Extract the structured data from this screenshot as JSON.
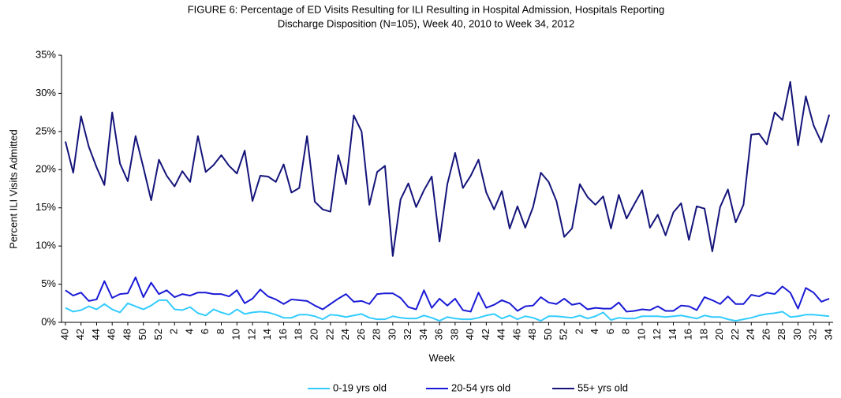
{
  "chart_data": {
    "type": "line",
    "title": [
      "FIGURE 6: Percentage of ED Visits Resulting for ILI Resulting in Hospital Admission, Hospitals Reporting",
      "Discharge Disposition (N=105), Week 40, 2010 to Week 34, 2012"
    ],
    "x_label": "Week",
    "y_label": "Percent ILI Visits Admitted",
    "categories": [
      "40",
      null,
      "42",
      null,
      "44",
      null,
      "46",
      null,
      "48",
      null,
      "50",
      null,
      "52",
      null,
      "2",
      null,
      "4",
      null,
      "6",
      null,
      "8",
      null,
      "10",
      null,
      "12",
      null,
      "14",
      null,
      "16",
      null,
      "18",
      null,
      "20",
      null,
      "22",
      null,
      "24",
      null,
      "26",
      null,
      "28",
      null,
      "30",
      null,
      "32",
      null,
      "34",
      null,
      "36",
      null,
      "38",
      null,
      "40",
      null,
      "42",
      null,
      "44",
      null,
      "46",
      null,
      "48",
      null,
      "50",
      null,
      "52",
      null,
      "2",
      null,
      "4",
      null,
      "6",
      null,
      "8",
      null,
      "10",
      null,
      "12",
      null,
      "14",
      null,
      "16",
      null,
      "18",
      null,
      "20",
      null,
      "22",
      null,
      "24",
      null,
      "26",
      null,
      "28",
      null,
      "30",
      null,
      "32",
      null,
      "34"
    ],
    "ylim": [
      0,
      35
    ],
    "yticks": [
      {
        "value": 0,
        "label": "0%"
      },
      {
        "value": 5,
        "label": "5%"
      },
      {
        "value": 10,
        "label": "10%"
      },
      {
        "value": 15,
        "label": "15%"
      },
      {
        "value": 20,
        "label": "20%"
      },
      {
        "value": 25,
        "label": "25%"
      },
      {
        "value": 30,
        "label": "30%"
      },
      {
        "value": 35,
        "label": "35%"
      }
    ],
    "grid": false,
    "legend": "bottom",
    "series": [
      {
        "name": "0-19 yrs old",
        "color": "#33ccff",
        "values": [
          1.9,
          1.4,
          1.6,
          2.1,
          1.7,
          2.4,
          1.7,
          1.3,
          2.5,
          2.1,
          1.7,
          2.2,
          2.9,
          2.9,
          1.7,
          1.6,
          2.0,
          1.2,
          0.9,
          1.7,
          1.3,
          1.0,
          1.7,
          1.1,
          1.3,
          1.4,
          1.3,
          1.0,
          0.6,
          0.6,
          1.0,
          1.0,
          0.8,
          0.4,
          1.0,
          0.9,
          0.7,
          0.9,
          1.1,
          0.6,
          0.4,
          0.4,
          0.8,
          0.6,
          0.5,
          0.5,
          0.9,
          0.6,
          0.2,
          0.7,
          0.5,
          0.4,
          0.4,
          0.6,
          0.9,
          1.1,
          0.5,
          0.9,
          0.4,
          0.8,
          0.6,
          0.2,
          0.8,
          0.8,
          0.7,
          0.6,
          0.9,
          0.5,
          0.8,
          1.3,
          0.3,
          0.6,
          0.5,
          0.5,
          0.8,
          0.8,
          0.8,
          0.7,
          0.8,
          0.9,
          0.7,
          0.5,
          0.9,
          0.7,
          0.7,
          0.4,
          0.2,
          0.4,
          0.6,
          0.9,
          1.1,
          1.2,
          1.4,
          0.7,
          0.8,
          1.0,
          1.0,
          0.9,
          0.8
        ]
      },
      {
        "name": "20-54 yrs old",
        "color": "#1a1ad6",
        "values": [
          4.2,
          3.5,
          3.9,
          2.8,
          3.0,
          5.4,
          3.2,
          3.7,
          3.8,
          5.9,
          3.3,
          5.2,
          3.7,
          4.2,
          3.3,
          3.7,
          3.5,
          3.9,
          3.9,
          3.7,
          3.7,
          3.4,
          4.2,
          2.5,
          3.1,
          4.3,
          3.4,
          3.0,
          2.4,
          3.0,
          2.9,
          2.8,
          2.2,
          1.7,
          2.4,
          3.1,
          3.7,
          2.7,
          2.8,
          2.4,
          3.7,
          3.8,
          3.8,
          3.2,
          2.0,
          1.7,
          4.2,
          1.9,
          3.1,
          2.2,
          3.1,
          1.6,
          1.4,
          3.9,
          1.9,
          2.3,
          2.9,
          2.5,
          1.5,
          2.1,
          2.2,
          3.3,
          2.6,
          2.4,
          3.1,
          2.3,
          2.5,
          1.7,
          1.9,
          1.8,
          1.8,
          2.6,
          1.4,
          1.5,
          1.7,
          1.6,
          2.1,
          1.5,
          1.5,
          2.2,
          2.1,
          1.6,
          3.3,
          2.9,
          2.4,
          3.4,
          2.4,
          2.4,
          3.6,
          3.4,
          3.9,
          3.7,
          4.7,
          3.9,
          1.8,
          4.5,
          3.9,
          2.7,
          3.1
        ]
      },
      {
        "name": "55+ yrs old",
        "color": "#14147a",
        "values": [
          23.7,
          19.6,
          27.0,
          23.0,
          20.3,
          18.0,
          27.5,
          20.8,
          18.5,
          24.4,
          20.3,
          16.0,
          21.3,
          19.2,
          17.8,
          19.8,
          18.4,
          24.4,
          19.7,
          20.6,
          21.9,
          20.5,
          19.5,
          22.5,
          15.9,
          19.2,
          19.1,
          18.4,
          20.7,
          17.0,
          17.6,
          24.4,
          15.8,
          14.8,
          14.5,
          21.9,
          18.1,
          27.1,
          25.0,
          15.4,
          19.7,
          20.5,
          8.7,
          16.1,
          18.2,
          15.1,
          17.3,
          19.1,
          10.6,
          18.1,
          22.2,
          17.6,
          19.2,
          21.3,
          17.0,
          14.8,
          17.2,
          12.3,
          15.2,
          12.4,
          15.1,
          19.6,
          18.4,
          15.9,
          11.2,
          12.3,
          18.1,
          16.4,
          15.4,
          16.5,
          12.3,
          16.7,
          13.6,
          15.5,
          17.3,
          12.4,
          14.1,
          11.4,
          14.4,
          15.6,
          10.8,
          15.2,
          14.9,
          9.3,
          15.1,
          17.4,
          13.1,
          15.4,
          24.6,
          24.7,
          23.3,
          27.5,
          26.5,
          31.5,
          23.2,
          29.6,
          25.8,
          23.6,
          27.2
        ]
      }
    ]
  }
}
